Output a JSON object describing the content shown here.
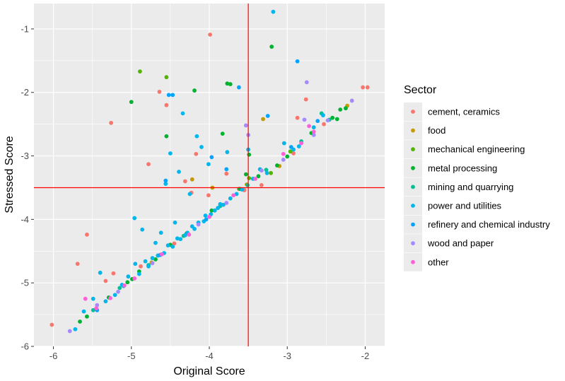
{
  "chart_data": {
    "type": "scatter",
    "xlabel": "Original Score",
    "ylabel": "Stressed Score",
    "xlim": [
      -6.25,
      -1.75
    ],
    "ylim": [
      -6.0,
      -0.6
    ],
    "x_ticks": [
      -6,
      -5,
      -4,
      -3,
      -2
    ],
    "y_ticks": [
      -6,
      -5,
      -4,
      -3,
      -2,
      -1
    ],
    "x_tick_labels": [
      "-6",
      "-5",
      "-4",
      "-3",
      "-2"
    ],
    "y_tick_labels": [
      "-6",
      "-5",
      "-4",
      "-3",
      "-2",
      "-1"
    ],
    "grid": true,
    "legend_position": "right",
    "legend_title": "Sector",
    "reference_lines": {
      "x": -3.5,
      "y": -3.5,
      "color": "#ff0000"
    },
    "series": [
      {
        "name": "cement, ceramics",
        "color": "#F8766D",
        "points": [
          [
            -6.02,
            -5.66
          ],
          [
            -5.69,
            -4.7
          ],
          [
            -5.57,
            -4.24
          ],
          [
            -5.33,
            -4.97
          ],
          [
            -5.26,
            -2.48
          ],
          [
            -5.23,
            -4.85
          ],
          [
            -4.88,
            -4.74
          ],
          [
            -4.78,
            -3.13
          ],
          [
            -4.64,
            -1.99
          ],
          [
            -4.55,
            -2.2
          ],
          [
            -4.31,
            -3.4
          ],
          [
            -4.23,
            -3.58
          ],
          [
            -4.17,
            -2.97
          ],
          [
            -4.01,
            -3.62
          ],
          [
            -3.99,
            -1.09
          ],
          [
            -3.78,
            -3.28
          ],
          [
            -3.55,
            -3.54
          ],
          [
            -3.33,
            -3.46
          ],
          [
            -2.92,
            -2.96
          ],
          [
            -2.87,
            -2.4
          ],
          [
            -2.76,
            -2.11
          ],
          [
            -2.53,
            -2.5
          ],
          [
            -2.03,
            -1.92
          ],
          [
            -1.97,
            -1.92
          ],
          [
            -3.62,
            -3.52
          ],
          [
            -4.45,
            -4.38
          ]
        ]
      },
      {
        "name": "food",
        "color": "#C49A00",
        "points": [
          [
            -4.74,
            -4.68
          ],
          [
            -4.22,
            -3.37
          ],
          [
            -3.96,
            -3.5
          ],
          [
            -3.52,
            -3.45
          ],
          [
            -3.31,
            -2.42
          ],
          [
            -3.1,
            -3.16
          ],
          [
            -2.23,
            -2.21
          ]
        ]
      },
      {
        "name": "mechanical engineering",
        "color": "#53B400",
        "points": [
          [
            -4.89,
            -1.67
          ],
          [
            -4.55,
            -1.76
          ],
          [
            -3.49,
            -3.35
          ],
          [
            -3.21,
            -3.27
          ],
          [
            -2.96,
            -2.93
          ]
        ]
      },
      {
        "name": "metal processing",
        "color": "#00B230",
        "points": [
          [
            -5.66,
            -5.61
          ],
          [
            -5.57,
            -5.53
          ],
          [
            -5.29,
            -5.23
          ],
          [
            -5.05,
            -4.99
          ],
          [
            -5.0,
            -2.15
          ],
          [
            -4.99,
            -4.94
          ],
          [
            -4.9,
            -4.82
          ],
          [
            -4.69,
            -4.63
          ],
          [
            -4.55,
            -2.69
          ],
          [
            -4.5,
            -4.4
          ],
          [
            -4.29,
            -4.22
          ],
          [
            -4.19,
            -1.97
          ],
          [
            -3.97,
            -3.86
          ],
          [
            -3.83,
            -2.65
          ],
          [
            -3.77,
            -1.86
          ],
          [
            -3.73,
            -1.87
          ],
          [
            -3.61,
            -3.52
          ],
          [
            -3.53,
            -3.29
          ],
          [
            -3.49,
            -2.98
          ],
          [
            -3.37,
            -3.32
          ],
          [
            -3.2,
            -1.28
          ],
          [
            -3.13,
            -3.15
          ],
          [
            -3.0,
            -3.01
          ],
          [
            -2.69,
            -2.64
          ],
          [
            -2.42,
            -2.4
          ],
          [
            -2.36,
            -2.42
          ],
          [
            -2.32,
            -2.27
          ],
          [
            -2.25,
            -2.25
          ]
        ]
      },
      {
        "name": "mining and quarrying",
        "color": "#00C094",
        "points": [
          [
            -5.49,
            -5.43
          ],
          [
            -5.15,
            -5.08
          ],
          [
            -4.78,
            -4.72
          ],
          [
            -4.33,
            -4.26
          ],
          [
            -3.86,
            -3.79
          ],
          [
            -3.51,
            -3.46
          ],
          [
            -3.27,
            -3.22
          ],
          [
            -2.82,
            -2.77
          ],
          [
            -2.56,
            -2.33
          ],
          [
            -2.46,
            -2.43
          ]
        ]
      },
      {
        "name": "power and utilities",
        "color": "#00B6EB",
        "points": [
          [
            -5.72,
            -5.73
          ],
          [
            -5.61,
            -5.45
          ],
          [
            -5.49,
            -5.25
          ],
          [
            -5.4,
            -4.84
          ],
          [
            -5.33,
            -5.29
          ],
          [
            -5.21,
            -5.19
          ],
          [
            -5.12,
            -5.03
          ],
          [
            -5.04,
            -4.9
          ],
          [
            -4.95,
            -4.7
          ],
          [
            -4.9,
            -4.86
          ],
          [
            -4.82,
            -4.66
          ],
          [
            -4.78,
            -4.74
          ],
          [
            -4.73,
            -4.61
          ],
          [
            -4.69,
            -4.37
          ],
          [
            -4.66,
            -4.57
          ],
          [
            -4.62,
            -4.21
          ],
          [
            -4.58,
            -4.53
          ],
          [
            -4.56,
            -3.44
          ],
          [
            -4.53,
            -4.41
          ],
          [
            -4.5,
            -2.96
          ],
          [
            -4.47,
            -4.43
          ],
          [
            -4.44,
            -4.05
          ],
          [
            -4.41,
            -4.3
          ],
          [
            -4.39,
            -3.25
          ],
          [
            -4.37,
            -4.31
          ],
          [
            -4.34,
            -2.33
          ],
          [
            -4.31,
            -4.25
          ],
          [
            -4.28,
            -4.21
          ],
          [
            -4.25,
            -3.6
          ],
          [
            -4.22,
            -4.11
          ],
          [
            -4.19,
            -4.15
          ],
          [
            -4.16,
            -2.69
          ],
          [
            -4.14,
            -4.05
          ],
          [
            -4.1,
            -2.86
          ],
          [
            -4.07,
            -4.03
          ],
          [
            -4.05,
            -3.94
          ],
          [
            -4.01,
            -3.13
          ],
          [
            -3.98,
            -3.92
          ],
          [
            -3.93,
            -3.86
          ],
          [
            -3.89,
            -3.82
          ],
          [
            -3.86,
            -3.76
          ],
          [
            -3.82,
            -3.77
          ],
          [
            -3.77,
            -2.94
          ],
          [
            -3.73,
            -3.67
          ],
          [
            -3.65,
            -3.6
          ],
          [
            -3.58,
            -3.53
          ],
          [
            -3.5,
            -2.9
          ],
          [
            -3.44,
            -3.36
          ],
          [
            -3.35,
            -3.21
          ],
          [
            -3.26,
            -3.27
          ],
          [
            -3.18,
            -0.73
          ],
          [
            -3.04,
            -2.8
          ],
          [
            -2.85,
            -2.85
          ],
          [
            -2.66,
            -2.55
          ],
          [
            -2.54,
            -2.36
          ],
          [
            -2.92,
            -2.9
          ],
          [
            -4.96,
            -3.98
          ],
          [
            -4.86,
            -4.16
          ],
          [
            -5.1,
            -5.05
          ]
        ]
      },
      {
        "name": "refinery and chemical industry",
        "color": "#06A4FF",
        "points": [
          [
            -5.44,
            -5.43
          ],
          [
            -4.56,
            -3.39
          ],
          [
            -4.52,
            -2.04
          ],
          [
            -4.47,
            -2.04
          ],
          [
            -3.97,
            -3.02
          ],
          [
            -3.78,
            -3.21
          ],
          [
            -3.62,
            -1.92
          ],
          [
            -3.25,
            -2.37
          ],
          [
            -2.95,
            -2.86
          ],
          [
            -2.87,
            -1.51
          ],
          [
            -2.61,
            -2.45
          ],
          [
            -4.04,
            -4.0
          ],
          [
            -4.63,
            -4.56
          ]
        ]
      },
      {
        "name": "wood and paper",
        "color": "#A58AFF",
        "points": [
          [
            -5.79,
            -5.76
          ],
          [
            -5.44,
            -5.35
          ],
          [
            -5.17,
            -5.14
          ],
          [
            -4.73,
            -4.69
          ],
          [
            -4.14,
            -4.08
          ],
          [
            -3.78,
            -3.74
          ],
          [
            -3.53,
            -2.52
          ],
          [
            -3.33,
            -3.23
          ],
          [
            -3.05,
            -3.06
          ],
          [
            -2.75,
            -1.84
          ],
          [
            -2.66,
            -2.67
          ],
          [
            -2.48,
            -2.44
          ],
          [
            -2.17,
            -2.13
          ],
          [
            -2.78,
            -2.43
          ],
          [
            -3.5,
            -2.67
          ]
        ]
      },
      {
        "name": "other",
        "color": "#FB61D7",
        "points": [
          [
            -5.59,
            -5.25
          ],
          [
            -5.27,
            -5.24
          ],
          [
            -5.09,
            -5.04
          ],
          [
            -4.96,
            -4.93
          ],
          [
            -4.61,
            -4.55
          ],
          [
            -4.26,
            -4.24
          ],
          [
            -4.0,
            -3.96
          ],
          [
            -3.69,
            -3.62
          ],
          [
            -3.41,
            -3.36
          ],
          [
            -3.05,
            -2.97
          ],
          [
            -2.82,
            -2.8
          ],
          [
            -2.66,
            -2.62
          ],
          [
            -2.72,
            -2.53
          ],
          [
            -5.45,
            -5.4
          ]
        ]
      }
    ]
  }
}
